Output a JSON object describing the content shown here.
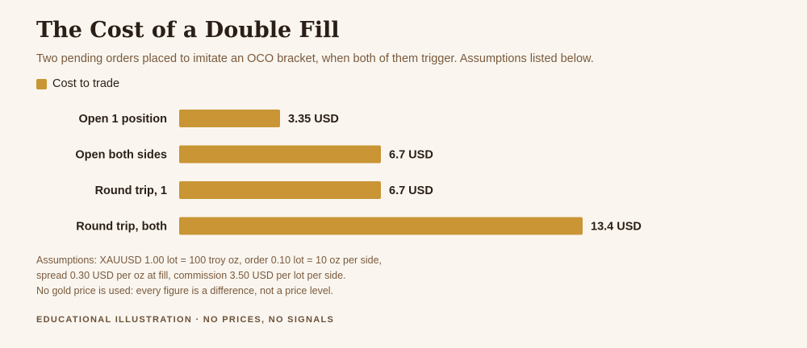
{
  "title": "The Cost of a Double Fill",
  "subtitle": "Two pending orders placed to imitate an OCO bracket, when both of them trigger. Assumptions listed below.",
  "colors": {
    "bar": "#c99535",
    "text_dark": "#2a1f17",
    "text_muted": "#7a5a3e",
    "background": "#faf6ef"
  },
  "chart_data": {
    "type": "bar",
    "orientation": "horizontal",
    "categories": [
      "Open 1 position",
      "Open both sides",
      "Round trip, 1",
      "Round trip, both"
    ],
    "series": [
      {
        "name": "Cost to trade",
        "values": [
          3.35,
          6.7,
          6.7,
          13.4
        ]
      }
    ],
    "value_labels": [
      "3.35 USD",
      "6.7 USD",
      "6.7 USD",
      "13.4 USD"
    ],
    "unit": "USD",
    "xlim": [
      0,
      13.4
    ],
    "grid": false,
    "legend_position": "top-left"
  },
  "notes": [
    "Assumptions: XAUUSD 1.00 lot = 100 troy oz, order 0.10 lot = 10 oz per side,",
    "spread 0.30 USD per oz at fill, commission 3.50 USD per lot per side.",
    "No gold price is used: every figure is a difference, not a price level."
  ],
  "footer": "EDUCATIONAL ILLUSTRATION · NO PRICES, NO SIGNALS"
}
